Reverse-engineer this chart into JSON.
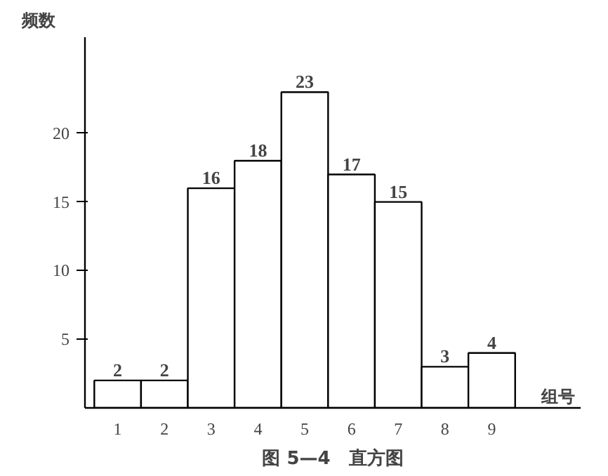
{
  "chart_data": {
    "type": "bar",
    "title": "图 5—4　直方图",
    "xlabel": "组号",
    "ylabel": "频数",
    "categories": [
      "1",
      "2",
      "3",
      "4",
      "5",
      "6",
      "7",
      "8",
      "9"
    ],
    "values": [
      2,
      2,
      16,
      18,
      23,
      17,
      15,
      3,
      4
    ],
    "color": "#ffffff",
    "data_labels": true,
    "ylim": [
      0,
      27
    ],
    "yticks": [
      5,
      10,
      15,
      20
    ],
    "grid": false
  }
}
